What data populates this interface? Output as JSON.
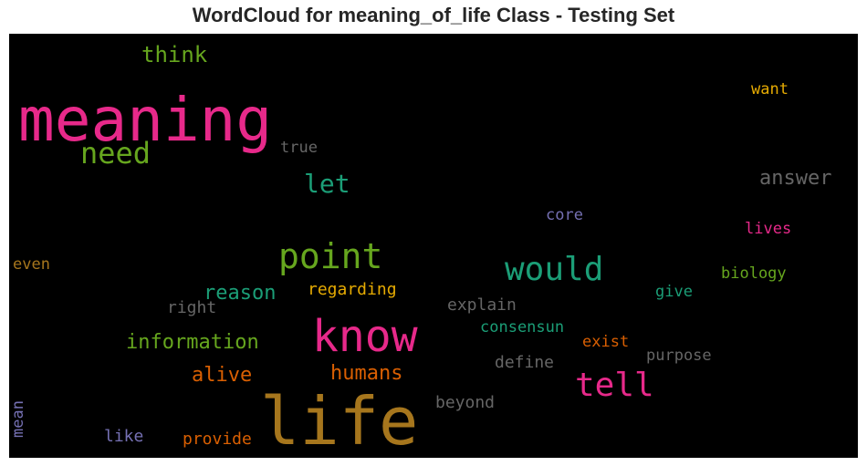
{
  "chart_data": {
    "type": "wordcloud",
    "title": "WordCloud for meaning_of_life Class - Testing Set",
    "background": "#000000",
    "words": [
      {
        "text": "life",
        "size": 72,
        "color": "#a6761d"
      },
      {
        "text": "meaning",
        "size": 66,
        "color": "#e7298a"
      },
      {
        "text": "know",
        "size": 48,
        "color": "#e7298a"
      },
      {
        "text": "point",
        "size": 38,
        "color": "#66a61e"
      },
      {
        "text": "would",
        "size": 36,
        "color": "#1b9e77"
      },
      {
        "text": "tell",
        "size": 36,
        "color": "#e7298a"
      },
      {
        "text": "need",
        "size": 32,
        "color": "#66a61e"
      },
      {
        "text": "let",
        "size": 28,
        "color": "#1b9e77"
      },
      {
        "text": "think",
        "size": 24,
        "color": "#66a61e"
      },
      {
        "text": "answer",
        "size": 22,
        "color": "#666666"
      },
      {
        "text": "information",
        "size": 22,
        "color": "#66a61e"
      },
      {
        "text": "reason",
        "size": 22,
        "color": "#1b9e77"
      },
      {
        "text": "alive",
        "size": 22,
        "color": "#d95f02"
      },
      {
        "text": "humans",
        "size": 22,
        "color": "#d95f02"
      },
      {
        "text": "regarding",
        "size": 18,
        "color": "#e6ab02"
      },
      {
        "text": "explain",
        "size": 18,
        "color": "#666666"
      },
      {
        "text": "consensun",
        "size": 17,
        "color": "#1b9e77"
      },
      {
        "text": "define",
        "size": 18,
        "color": "#666666"
      },
      {
        "text": "exist",
        "size": 17,
        "color": "#d95f02"
      },
      {
        "text": "purpose",
        "size": 17,
        "color": "#666666"
      },
      {
        "text": "beyond",
        "size": 18,
        "color": "#666666"
      },
      {
        "text": "provide",
        "size": 18,
        "color": "#d95f02"
      },
      {
        "text": "like",
        "size": 18,
        "color": "#7570b3"
      },
      {
        "text": "right",
        "size": 18,
        "color": "#666666"
      },
      {
        "text": "even",
        "size": 17,
        "color": "#a6761d"
      },
      {
        "text": "mean",
        "size": 17,
        "color": "#7570b3"
      },
      {
        "text": "true",
        "size": 17,
        "color": "#666666"
      },
      {
        "text": "want",
        "size": 17,
        "color": "#e6ab02"
      },
      {
        "text": "core",
        "size": 17,
        "color": "#7570b3"
      },
      {
        "text": "lives",
        "size": 17,
        "color": "#e7298a"
      },
      {
        "text": "biology",
        "size": 17,
        "color": "#66a61e"
      },
      {
        "text": "give",
        "size": 17,
        "color": "#1b9e77"
      }
    ]
  }
}
